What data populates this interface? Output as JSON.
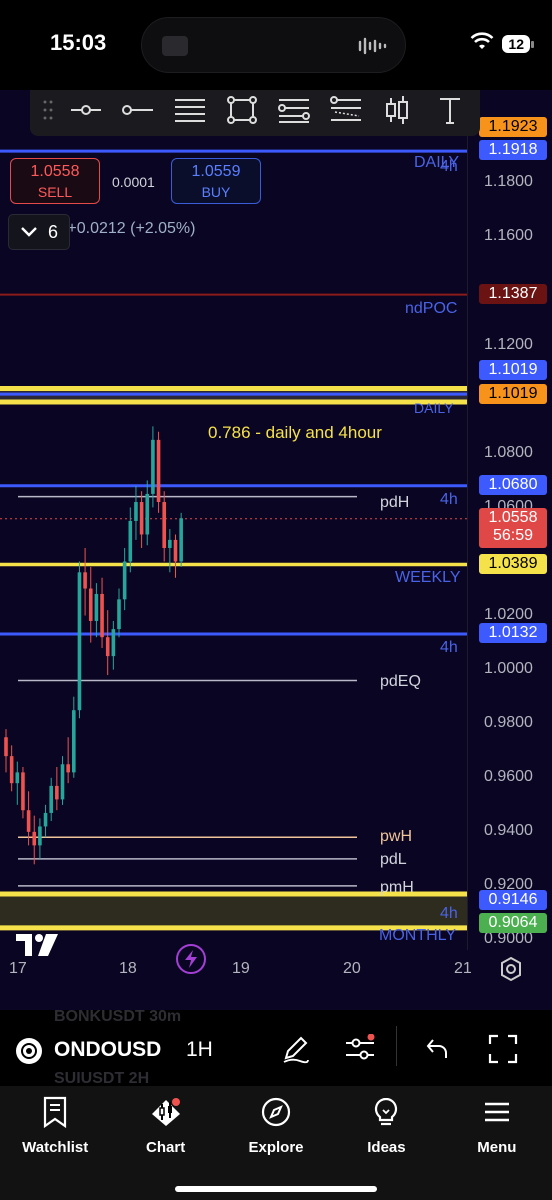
{
  "status_bar": {
    "time": "15:03",
    "battery": "12"
  },
  "toolbar": {
    "icons": [
      "drag-handle-icon",
      "horizontal-ray-icon",
      "horizontal-line-icon",
      "parallel-lines-icon",
      "rectangle-icon",
      "fib-retracement-icon",
      "fib-extension-icon",
      "candles-icon",
      "text-icon"
    ]
  },
  "order_panel": {
    "top_info": "1.0558 +0.0212 (+2.05%)",
    "sell_price": "1.0558",
    "sell_label": "SELL",
    "spread": "0.0001",
    "buy_price": "1.0559",
    "buy_label": "BUY",
    "layers_count": "6"
  },
  "annotations": {
    "daily_top": "DAILY",
    "h4_top": "4h",
    "ndpoc": "ndPOC",
    "daily_mid": "DAILY",
    "fib_note": "0.786 - daily and 4hour",
    "pdh": "pdH",
    "h4_pdh": "4h",
    "weekly": "WEEKLY",
    "h4_mid": "4h",
    "pdeq": "pdEQ",
    "pwh": "pwH",
    "pdl": "pdL",
    "pmh": "pmH",
    "h4_bottom": "4h",
    "monthly": "MONTHLY"
  },
  "price_axis": {
    "ticks": [
      "1.1800",
      "1.1600",
      "1.1200",
      "1.0800",
      "1.0600",
      "1.0200",
      "1.0000",
      "0.9800",
      "0.9600",
      "0.9400",
      "0.9200",
      "0.9000"
    ],
    "tags": {
      "p1": "1.1923",
      "p2": "1.1918",
      "p3": "1.1387",
      "p4": "1.1019",
      "p5": "1.1019",
      "p6": "1.0680",
      "last_price": "1.0558",
      "countdown": "56:59",
      "p7": "1.0389",
      "p8": "1.0132",
      "p9": "0.9146",
      "p10": "0.9064"
    }
  },
  "time_axis": {
    "ticks": [
      "17",
      "18",
      "19",
      "20",
      "21"
    ]
  },
  "symbol_bar": {
    "ghost_1": "BONKUSDT  30m",
    "ghost_2": "SUIUSDT  2H",
    "symbol": "ONDOUSD",
    "interval": "1H"
  },
  "bottom_nav": {
    "items": [
      {
        "label": "Watchlist",
        "icon": "watchlist-icon"
      },
      {
        "label": "Chart",
        "icon": "chart-icon"
      },
      {
        "label": "Explore",
        "icon": "compass-icon"
      },
      {
        "label": "Ideas",
        "icon": "lightbulb-icon"
      },
      {
        "label": "Menu",
        "icon": "menu-icon"
      }
    ]
  },
  "colors": {
    "background": "#0a0522",
    "up": "#26a69a",
    "down": "#ef5350",
    "yellow": "#f5e14a",
    "blue": "#3d5afe",
    "red_line": "#8b1a1a",
    "accent_purple": "#a43fd6"
  },
  "chart_data": {
    "type": "candlestick",
    "symbol": "ONDOUSD",
    "interval": "1H",
    "ylim": [
      0.89,
      1.2
    ],
    "x_ticks": [
      "17",
      "18",
      "19",
      "20",
      "21"
    ],
    "candles": [
      [
        0.975,
        0.978,
        0.962,
        0.968
      ],
      [
        0.968,
        0.972,
        0.955,
        0.958
      ],
      [
        0.958,
        0.966,
        0.95,
        0.962
      ],
      [
        0.962,
        0.964,
        0.945,
        0.948
      ],
      [
        0.948,
        0.955,
        0.935,
        0.94
      ],
      [
        0.94,
        0.946,
        0.928,
        0.935
      ],
      [
        0.935,
        0.945,
        0.93,
        0.942
      ],
      [
        0.942,
        0.95,
        0.938,
        0.947
      ],
      [
        0.947,
        0.96,
        0.944,
        0.957
      ],
      [
        0.957,
        0.964,
        0.948,
        0.952
      ],
      [
        0.952,
        0.968,
        0.95,
        0.965
      ],
      [
        0.965,
        0.975,
        0.958,
        0.962
      ],
      [
        0.962,
        0.99,
        0.96,
        0.985
      ],
      [
        0.985,
        1.04,
        0.982,
        1.036
      ],
      [
        1.036,
        1.045,
        1.02,
        1.03
      ],
      [
        1.03,
        1.038,
        1.01,
        1.018
      ],
      [
        1.018,
        1.032,
        1.012,
        1.028
      ],
      [
        1.028,
        1.034,
        1.008,
        1.012
      ],
      [
        1.012,
        1.022,
        0.998,
        1.005
      ],
      [
        1.005,
        1.018,
        1.0,
        1.015
      ],
      [
        1.015,
        1.03,
        1.012,
        1.026
      ],
      [
        1.026,
        1.045,
        1.022,
        1.04
      ],
      [
        1.04,
        1.06,
        1.036,
        1.055
      ],
      [
        1.055,
        1.068,
        1.048,
        1.062
      ],
      [
        1.062,
        1.066,
        1.045,
        1.05
      ],
      [
        1.05,
        1.07,
        1.046,
        1.065
      ],
      [
        1.065,
        1.09,
        1.06,
        1.085
      ],
      [
        1.085,
        1.088,
        1.058,
        1.062
      ],
      [
        1.062,
        1.066,
        1.04,
        1.045
      ],
      [
        1.045,
        1.052,
        1.036,
        1.048
      ],
      [
        1.048,
        1.05,
        1.034,
        1.04
      ],
      [
        1.04,
        1.058,
        1.038,
        1.056
      ]
    ]
  }
}
